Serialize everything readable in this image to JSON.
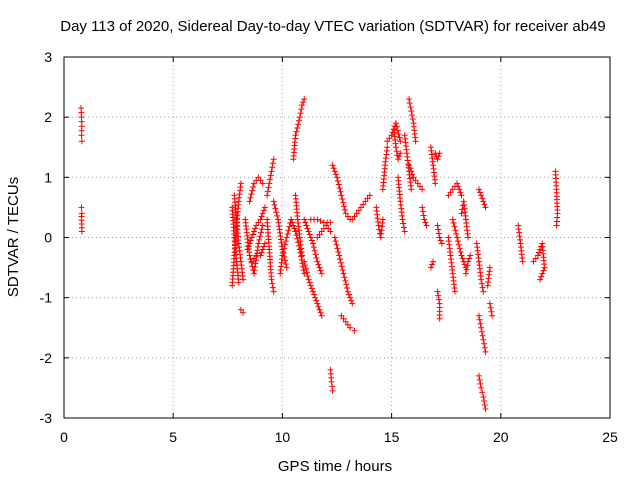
{
  "chart_data": {
    "type": "scatter",
    "title": "Day 113 of 2020, Sidereal Day-to-day VTEC variation (SDTVAR) for receiver ab49",
    "xlabel": "GPS time / hours",
    "ylabel": "SDTVAR / TECUs",
    "xlim": [
      0,
      25
    ],
    "ylim": [
      -3,
      3
    ],
    "xticks": [
      0,
      5,
      10,
      15,
      20,
      25
    ],
    "yticks": [
      -3,
      -2,
      -1,
      0,
      1,
      2,
      3
    ],
    "grid": true,
    "marker": "+",
    "marker_color": "#ff0000",
    "tracks": [
      {
        "name": "t1",
        "points": [
          [
            0.78,
            2.15
          ],
          [
            0.8,
            2.0
          ],
          [
            0.82,
            1.85
          ],
          [
            0.8,
            1.7
          ],
          [
            0.82,
            1.6
          ]
        ]
      },
      {
        "name": "t2",
        "points": [
          [
            0.8,
            0.5
          ],
          [
            0.82,
            0.4
          ],
          [
            0.8,
            0.35
          ],
          [
            0.82,
            0.1
          ]
        ]
      },
      {
        "name": "t3",
        "points": [
          [
            7.7,
            -0.8
          ],
          [
            7.8,
            -0.3
          ],
          [
            7.9,
            0.2
          ],
          [
            8.0,
            0.6
          ],
          [
            8.1,
            0.9
          ]
        ]
      },
      {
        "name": "t4",
        "points": [
          [
            7.8,
            0.7
          ],
          [
            7.9,
            0.3
          ],
          [
            8.0,
            -0.1
          ],
          [
            8.1,
            -0.4
          ],
          [
            8.2,
            -0.7
          ]
        ]
      },
      {
        "name": "t5",
        "points": [
          [
            7.7,
            0.5
          ],
          [
            7.8,
            0.0
          ],
          [
            7.9,
            -0.4
          ],
          [
            8.0,
            -0.75
          ]
        ]
      },
      {
        "name": "t6",
        "points": [
          [
            8.1,
            -1.2
          ],
          [
            8.2,
            -1.25
          ]
        ]
      },
      {
        "name": "t7",
        "points": [
          [
            8.3,
            0.3
          ],
          [
            8.5,
            -0.3
          ],
          [
            8.7,
            -0.6
          ],
          [
            8.9,
            -0.1
          ],
          [
            9.1,
            0.2
          ]
        ]
      },
      {
        "name": "t8",
        "points": [
          [
            8.5,
            0.6
          ],
          [
            8.7,
            0.9
          ],
          [
            8.9,
            1.0
          ],
          [
            9.1,
            0.9
          ]
        ]
      },
      {
        "name": "t9",
        "points": [
          [
            8.4,
            -0.2
          ],
          [
            8.6,
            0.0
          ],
          [
            8.8,
            0.2
          ],
          [
            9.0,
            0.3
          ],
          [
            9.2,
            0.5
          ]
        ]
      },
      {
        "name": "t10",
        "points": [
          [
            8.6,
            -0.4
          ],
          [
            8.8,
            -0.3
          ],
          [
            9.0,
            -0.3
          ],
          [
            9.2,
            -0.1
          ]
        ]
      },
      {
        "name": "t11",
        "points": [
          [
            9.3,
            0.3
          ],
          [
            9.4,
            -0.2
          ],
          [
            9.5,
            -0.7
          ],
          [
            9.6,
            -0.9
          ]
        ]
      },
      {
        "name": "t12",
        "points": [
          [
            9.3,
            0.7
          ],
          [
            9.4,
            0.9
          ],
          [
            9.5,
            1.1
          ],
          [
            9.6,
            1.3
          ]
        ]
      },
      {
        "name": "t13",
        "points": [
          [
            9.6,
            0.6
          ],
          [
            9.8,
            0.3
          ],
          [
            10.0,
            -0.2
          ],
          [
            10.2,
            -0.5
          ]
        ]
      },
      {
        "name": "t14",
        "points": [
          [
            9.9,
            -0.6
          ],
          [
            10.0,
            -0.3
          ],
          [
            10.2,
            0.0
          ],
          [
            10.4,
            0.3
          ]
        ]
      },
      {
        "name": "t15",
        "points": [
          [
            10.4,
            0.3
          ],
          [
            10.6,
            0.1
          ],
          [
            10.8,
            -0.2
          ],
          [
            11.0,
            -0.6
          ]
        ]
      },
      {
        "name": "t16",
        "points": [
          [
            10.5,
            1.3
          ],
          [
            10.6,
            1.7
          ],
          [
            10.8,
            2.0
          ],
          [
            10.9,
            2.2
          ],
          [
            11.0,
            2.3
          ]
        ]
      },
      {
        "name": "t17",
        "points": [
          [
            10.6,
            0.7
          ],
          [
            10.7,
            0.3
          ],
          [
            10.8,
            0.0
          ],
          [
            10.9,
            -0.3
          ]
        ]
      },
      {
        "name": "t18",
        "points": [
          [
            11.0,
            -0.4
          ],
          [
            11.2,
            -0.7
          ],
          [
            11.4,
            -0.9
          ],
          [
            11.6,
            -1.1
          ],
          [
            11.8,
            -1.3
          ]
        ]
      },
      {
        "name": "t19",
        "points": [
          [
            11.0,
            0.3
          ],
          [
            11.2,
            0.1
          ],
          [
            11.4,
            -0.1
          ],
          [
            11.6,
            -0.4
          ],
          [
            11.8,
            -0.6
          ]
        ]
      },
      {
        "name": "t20",
        "points": [
          [
            11.3,
            0.3
          ],
          [
            11.6,
            0.3
          ],
          [
            11.9,
            0.25
          ],
          [
            12.2,
            0.25
          ]
        ]
      },
      {
        "name": "t21",
        "points": [
          [
            11.6,
            0.0
          ],
          [
            11.8,
            0.1
          ],
          [
            12.0,
            0.2
          ],
          [
            12.2,
            0.1
          ]
        ]
      },
      {
        "name": "t22",
        "points": [
          [
            12.2,
            -2.2
          ],
          [
            12.25,
            -2.4
          ],
          [
            12.3,
            -2.55
          ]
        ]
      },
      {
        "name": "t23",
        "points": [
          [
            12.3,
            1.2
          ],
          [
            12.5,
            1.0
          ],
          [
            12.7,
            0.7
          ],
          [
            12.9,
            0.4
          ],
          [
            13.1,
            0.3
          ]
        ]
      },
      {
        "name": "t24",
        "points": [
          [
            12.4,
            0.0
          ],
          [
            12.6,
            -0.3
          ],
          [
            12.8,
            -0.6
          ],
          [
            13.0,
            -0.9
          ],
          [
            13.2,
            -1.1
          ]
        ]
      },
      {
        "name": "t25",
        "points": [
          [
            12.7,
            -1.3
          ],
          [
            12.9,
            -1.4
          ],
          [
            13.1,
            -1.5
          ],
          [
            13.3,
            -1.55
          ]
        ]
      },
      {
        "name": "t26",
        "points": [
          [
            13.2,
            0.3
          ],
          [
            13.4,
            0.4
          ],
          [
            13.6,
            0.5
          ],
          [
            13.8,
            0.6
          ],
          [
            14.0,
            0.7
          ]
        ]
      },
      {
        "name": "t27",
        "points": [
          [
            14.3,
            0.5
          ],
          [
            14.4,
            0.2
          ],
          [
            14.5,
            0.0
          ],
          [
            14.6,
            0.3
          ]
        ]
      },
      {
        "name": "t28",
        "points": [
          [
            14.6,
            0.8
          ],
          [
            14.7,
            1.2
          ],
          [
            14.8,
            1.5
          ]
        ]
      },
      {
        "name": "t29",
        "points": [
          [
            14.8,
            1.6
          ],
          [
            15.0,
            1.7
          ],
          [
            15.2,
            1.9
          ],
          [
            15.4,
            1.6
          ]
        ]
      },
      {
        "name": "t30",
        "points": [
          [
            15.1,
            1.8
          ],
          [
            15.2,
            1.5
          ],
          [
            15.3,
            1.3
          ],
          [
            15.4,
            1.4
          ]
        ]
      },
      {
        "name": "t31",
        "points": [
          [
            15.3,
            1.0
          ],
          [
            15.4,
            0.6
          ],
          [
            15.5,
            0.3
          ],
          [
            15.6,
            0.1
          ]
        ]
      },
      {
        "name": "t32",
        "points": [
          [
            15.6,
            1.7
          ],
          [
            15.7,
            1.4
          ],
          [
            15.8,
            1.1
          ],
          [
            15.9,
            0.8
          ]
        ]
      },
      {
        "name": "t33",
        "points": [
          [
            15.8,
            2.3
          ],
          [
            15.9,
            2.1
          ],
          [
            16.0,
            1.9
          ],
          [
            16.1,
            1.6
          ]
        ]
      },
      {
        "name": "t34",
        "points": [
          [
            15.8,
            1.2
          ],
          [
            16.0,
            1.0
          ],
          [
            16.2,
            0.9
          ],
          [
            16.4,
            0.8
          ]
        ]
      },
      {
        "name": "t35",
        "points": [
          [
            16.4,
            0.5
          ],
          [
            16.5,
            0.3
          ],
          [
            16.6,
            0.2
          ]
        ]
      },
      {
        "name": "t36",
        "points": [
          [
            16.8,
            1.5
          ],
          [
            16.9,
            1.2
          ],
          [
            17.0,
            0.9
          ]
        ]
      },
      {
        "name": "t37",
        "points": [
          [
            17.0,
            1.4
          ],
          [
            17.1,
            1.3
          ],
          [
            17.2,
            1.4
          ]
        ]
      },
      {
        "name": "t38",
        "points": [
          [
            16.8,
            -0.5
          ],
          [
            16.9,
            -0.4
          ]
        ]
      },
      {
        "name": "t39",
        "points": [
          [
            17.1,
            -0.9
          ],
          [
            17.2,
            -1.1
          ],
          [
            17.2,
            -1.35
          ]
        ]
      },
      {
        "name": "t40",
        "points": [
          [
            17.1,
            0.2
          ],
          [
            17.2,
            0.0
          ],
          [
            17.3,
            -0.1
          ]
        ]
      },
      {
        "name": "t41",
        "points": [
          [
            17.6,
            0.7
          ],
          [
            17.8,
            0.8
          ],
          [
            18.0,
            0.9
          ],
          [
            18.2,
            0.7
          ]
        ]
      },
      {
        "name": "t42",
        "points": [
          [
            17.6,
            0.0
          ],
          [
            17.7,
            -0.3
          ],
          [
            17.8,
            -0.6
          ],
          [
            17.9,
            -0.9
          ]
        ]
      },
      {
        "name": "t43",
        "points": [
          [
            17.8,
            0.3
          ],
          [
            18.0,
            0.0
          ],
          [
            18.2,
            -0.3
          ],
          [
            18.4,
            -0.5
          ]
        ]
      },
      {
        "name": "t44",
        "points": [
          [
            18.2,
            0.4
          ],
          [
            18.3,
            0.6
          ],
          [
            18.4,
            0.3
          ],
          [
            18.5,
            0.0
          ]
        ]
      },
      {
        "name": "t45",
        "points": [
          [
            18.4,
            -0.6
          ],
          [
            18.5,
            -0.4
          ],
          [
            18.6,
            -0.3
          ]
        ]
      },
      {
        "name": "t46",
        "points": [
          [
            18.9,
            -0.1
          ],
          [
            19.0,
            -0.4
          ],
          [
            19.1,
            -0.7
          ],
          [
            19.2,
            -0.9
          ]
        ]
      },
      {
        "name": "t47",
        "points": [
          [
            19.0,
            -1.3
          ],
          [
            19.1,
            -1.5
          ],
          [
            19.2,
            -1.7
          ],
          [
            19.3,
            -1.9
          ]
        ]
      },
      {
        "name": "t48",
        "points": [
          [
            19.0,
            -2.3
          ],
          [
            19.1,
            -2.5
          ],
          [
            19.2,
            -2.65
          ],
          [
            19.3,
            -2.85
          ]
        ]
      },
      {
        "name": "t49",
        "points": [
          [
            19.0,
            0.8
          ],
          [
            19.1,
            0.7
          ],
          [
            19.2,
            0.6
          ],
          [
            19.3,
            0.5
          ]
        ]
      },
      {
        "name": "t50",
        "points": [
          [
            19.4,
            -0.8
          ],
          [
            19.5,
            -0.5
          ]
        ]
      },
      {
        "name": "t51",
        "points": [
          [
            19.5,
            -1.1
          ],
          [
            19.6,
            -1.3
          ]
        ]
      },
      {
        "name": "t52",
        "points": [
          [
            20.8,
            0.2
          ],
          [
            20.9,
            -0.1
          ],
          [
            21.0,
            -0.4
          ]
        ]
      },
      {
        "name": "t53",
        "points": [
          [
            21.5,
            -0.4
          ],
          [
            21.7,
            -0.3
          ],
          [
            21.9,
            -0.1
          ],
          [
            22.0,
            -0.5
          ],
          [
            21.8,
            -0.7
          ]
        ]
      },
      {
        "name": "t54",
        "points": [
          [
            22.5,
            1.1
          ],
          [
            22.55,
            0.8
          ],
          [
            22.6,
            0.4
          ],
          [
            22.55,
            0.2
          ]
        ]
      }
    ]
  }
}
